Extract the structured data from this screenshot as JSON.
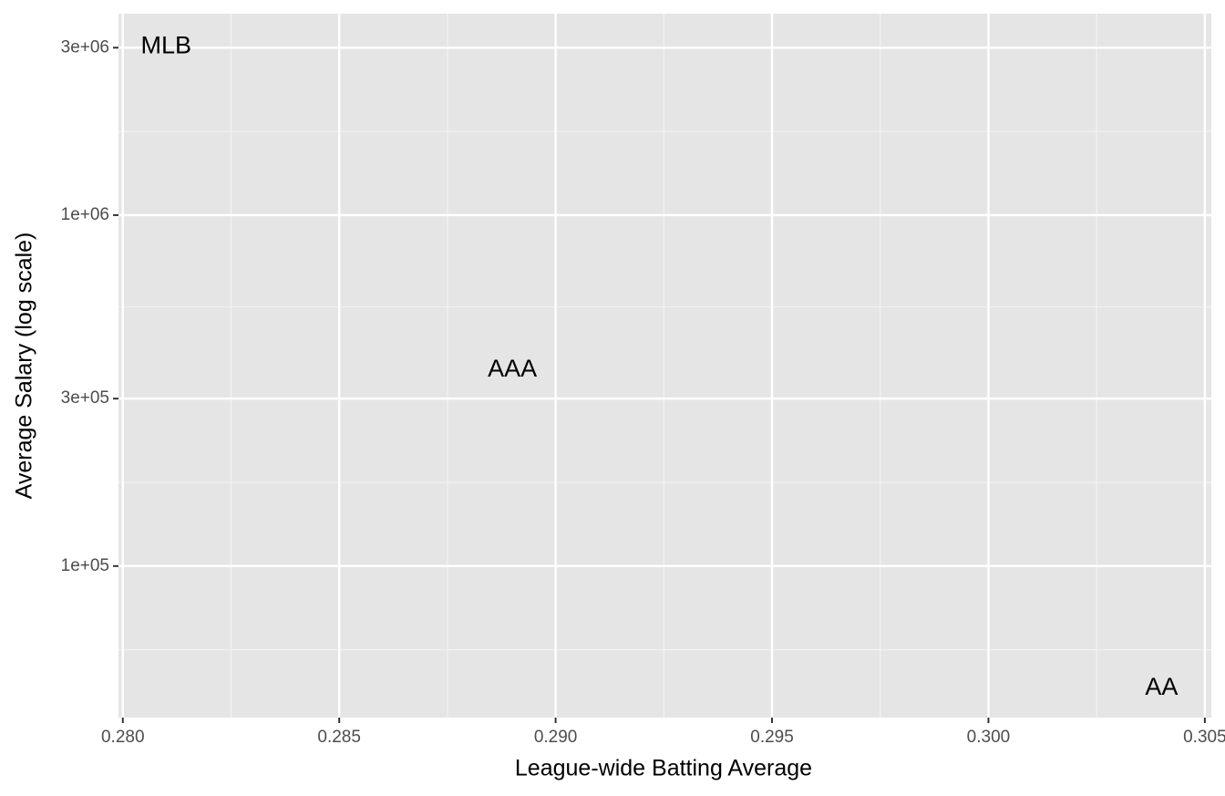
{
  "chart_data": {
    "type": "scatter",
    "x_label": "League-wide Batting Average",
    "y_label": "Average Salary (log scale)",
    "labels": [
      "MLB",
      "AAA",
      "AA"
    ],
    "x": [
      0.281,
      0.289,
      0.304
    ],
    "values": [
      3020000,
      362000,
      44900
    ],
    "xlim": [
      0.2799,
      0.30515
    ],
    "ylim": [
      37000,
      3750000
    ],
    "ylog": true,
    "xticks": [
      {
        "value": 0.28,
        "label": "0.280"
      },
      0.285,
      {
        "value": 0.29,
        "label": "0.290"
      },
      0.295,
      {
        "value": 0.3,
        "label": "0.300"
      },
      0.305
    ],
    "yticks": [
      {
        "value": 100000,
        "label": "1e+05"
      },
      {
        "value": 300000,
        "label": "3e+05"
      },
      {
        "value": 1000000,
        "label": "1e+06"
      },
      {
        "value": 3000000,
        "label": "3e+06"
      }
    ],
    "grid": true
  }
}
